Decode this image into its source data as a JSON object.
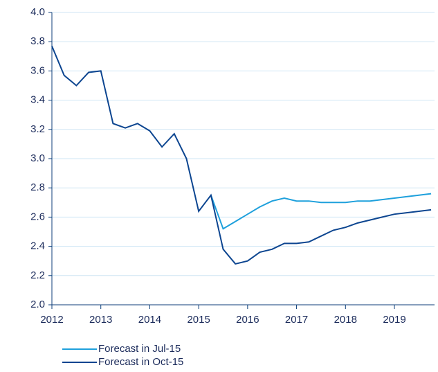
{
  "chart_data": {
    "type": "line",
    "x": [
      2012,
      2012.25,
      2012.5,
      2012.75,
      2013,
      2013.25,
      2013.5,
      2013.75,
      2014,
      2014.25,
      2014.5,
      2014.75,
      2015,
      2015.25,
      2015.5,
      2015.75,
      2016,
      2016.25,
      2016.5,
      2016.75,
      2017,
      2017.25,
      2017.5,
      2017.75,
      2018,
      2018.25,
      2018.5,
      2018.75,
      2019,
      2019.25,
      2019.5,
      2019.75
    ],
    "series": [
      {
        "name": "Forecast in Jul-15",
        "color": "#1ea0dc",
        "values": [
          null,
          null,
          null,
          null,
          null,
          null,
          null,
          null,
          null,
          null,
          null,
          null,
          null,
          2.75,
          2.52,
          2.57,
          2.62,
          2.67,
          2.71,
          2.73,
          2.71,
          2.71,
          2.7,
          2.7,
          2.7,
          2.71,
          2.71,
          2.72,
          2.73,
          2.74,
          2.75,
          2.76
        ]
      },
      {
        "name": "Forecast in Oct-15",
        "color": "#0c4590",
        "values": [
          3.77,
          3.57,
          3.5,
          3.59,
          3.6,
          3.24,
          3.21,
          3.24,
          3.19,
          3.08,
          3.17,
          3.0,
          2.64,
          2.75,
          2.38,
          2.28,
          2.3,
          2.36,
          2.38,
          2.42,
          2.42,
          2.43,
          2.47,
          2.51,
          2.53,
          2.56,
          2.58,
          2.6,
          2.62,
          2.63,
          2.64,
          2.65
        ]
      }
    ],
    "xlim": [
      2012,
      2019.82
    ],
    "xticks": [
      2012,
      2013,
      2014,
      2015,
      2016,
      2017,
      2018,
      2019
    ],
    "ylim": [
      2.0,
      4.0
    ],
    "yticks": [
      {
        "value": 2.0,
        "label": "2.0"
      },
      {
        "value": 2.2,
        "label": "2.2"
      },
      {
        "value": 2.4,
        "label": "2.4"
      },
      {
        "value": 2.6,
        "label": "2.6"
      },
      {
        "value": 2.8,
        "label": "2.8"
      },
      {
        "value": 3.0,
        "label": "3.0"
      },
      {
        "value": 3.2,
        "label": "3.2"
      },
      {
        "value": 3.4,
        "label": "3.4"
      },
      {
        "value": 3.6,
        "label": "3.6"
      },
      {
        "value": 3.8,
        "label": "3.8"
      },
      {
        "value": 4.0,
        "label": "4.0"
      }
    ],
    "grid": true
  }
}
